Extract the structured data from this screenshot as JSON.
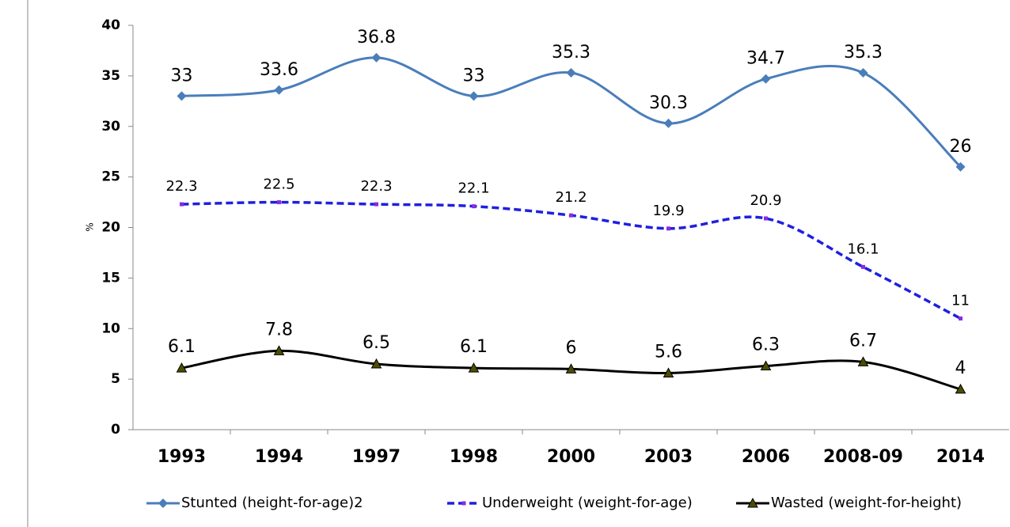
{
  "chart_data": {
    "type": "line",
    "y_label": "%",
    "categories": [
      "1993",
      "1994",
      "1997",
      "1998",
      "2000",
      "2003",
      "2006",
      "2008-09",
      "2014"
    ],
    "series": [
      {
        "name": "Stunted (height-for-age)2",
        "color": "#4a7ebb",
        "values": [
          33,
          33.6,
          36.8,
          33,
          35.3,
          30.3,
          34.7,
          35.3,
          26
        ]
      },
      {
        "name": "Underweight (weight-for-age)",
        "color": "#1f1fe0",
        "values": [
          22.3,
          22.5,
          22.3,
          22.1,
          21.2,
          19.9,
          20.9,
          16.1,
          11
        ]
      },
      {
        "name": "Wasted (weight-for-height)",
        "color": "#000000",
        "values": [
          6.1,
          7.8,
          6.5,
          6.1,
          6,
          5.6,
          6.3,
          6.7,
          4
        ]
      }
    ],
    "ylim": [
      0,
      40
    ],
    "yticks": [
      0,
      5,
      10,
      15,
      20,
      25,
      30,
      35,
      40
    ],
    "grid": false,
    "legend": "bottom"
  }
}
